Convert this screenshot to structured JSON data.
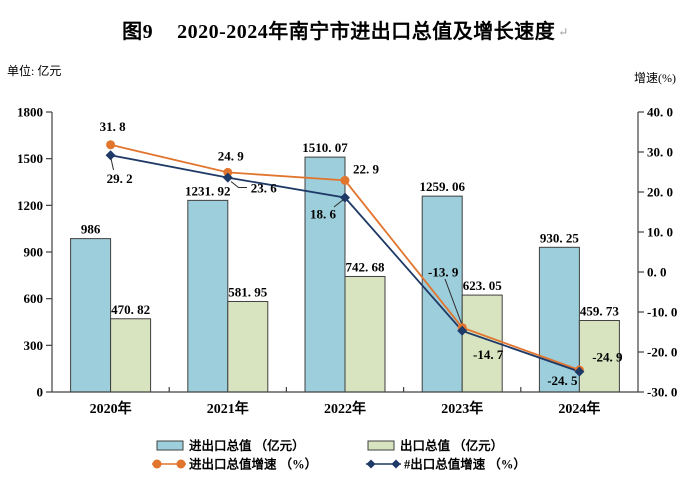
{
  "header": {
    "figure_label": "图9",
    "title": "2020-2024年南宁市进出口总值及增长速度",
    "paragraph_mark": "↵"
  },
  "axis_units": {
    "left": "单位: 亿元",
    "right": "增速(%)"
  },
  "colors": {
    "import_export_bar": "#9DCEDB",
    "export_bar": "#D8E4C0",
    "import_export_line": "#E2752D",
    "export_line": "#1F3A66",
    "axis": "#404040",
    "bar_border": "#404040",
    "leader": "#2b2b2b"
  },
  "chart_data": {
    "type": "combo",
    "categories": [
      "2020年",
      "2021年",
      "2022年",
      "2023年",
      "2024年"
    ],
    "left_axis": {
      "min": 0,
      "max": 1800,
      "ticks": [
        0,
        300,
        600,
        900,
        1200,
        1500,
        1800
      ],
      "tick_labels": [
        "0",
        "300",
        "600",
        "900",
        "1200",
        "1500",
        "1800"
      ]
    },
    "right_axis": {
      "min": -30,
      "max": 40,
      "ticks": [
        -30,
        -20,
        -10,
        0,
        10,
        20,
        30,
        40
      ],
      "tick_labels": [
        "-30. 0",
        "-20. 0",
        "-10. 0",
        "0. 0",
        "10. 0",
        "20. 0",
        "30. 0",
        "40. 0"
      ]
    },
    "series": [
      {
        "id": "import_export_total",
        "name": "进出口总值 （亿元）",
        "type": "bar",
        "axis": "left",
        "color": "#9DCEDB",
        "values": [
          986,
          1231.92,
          1510.07,
          1259.06,
          930.25
        ],
        "labels": [
          "986",
          "1231. 92",
          "1510. 07",
          "1259. 06",
          "930. 25"
        ]
      },
      {
        "id": "export_total",
        "name": "出口总值 （亿元）",
        "type": "bar",
        "axis": "left",
        "color": "#D8E4C0",
        "values": [
          470.82,
          581.95,
          742.68,
          623.05,
          459.73
        ],
        "labels": [
          "470. 82",
          "581. 95",
          "742. 68",
          "623. 05",
          "459. 73"
        ]
      },
      {
        "id": "import_export_growth",
        "name": "进出口总值增速 （%）",
        "type": "line",
        "axis": "right",
        "color": "#E2752D",
        "marker": "circle",
        "values": [
          31.8,
          24.9,
          22.9,
          -13.9,
          -24.5
        ],
        "labels": [
          "31. 8",
          "24. 9",
          "22. 9",
          "-13. 9",
          "-24. 5"
        ]
      },
      {
        "id": "export_growth",
        "name": "#出口总值增速 （%）",
        "type": "line",
        "axis": "right",
        "color": "#1F3A66",
        "marker": "diamond",
        "values": [
          29.2,
          23.6,
          18.6,
          -14.7,
          -24.9
        ],
        "labels": [
          "29. 2",
          "23. 6",
          "18. 6",
          "-14. 7",
          "-24. 9"
        ]
      }
    ]
  }
}
